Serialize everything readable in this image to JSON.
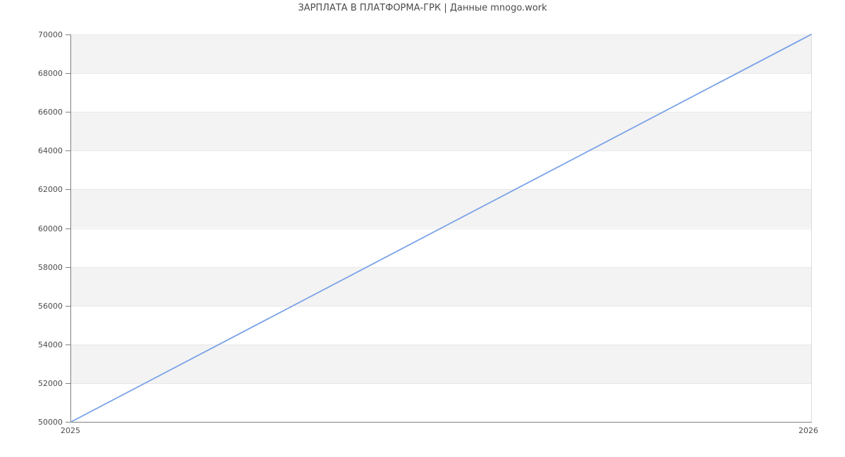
{
  "chart_data": {
    "type": "line",
    "title": "ЗАРПЛАТА В ПЛАТФОРМА-ГРК | Данные mnogo.work",
    "x": [
      2025,
      2026
    ],
    "xticklabels": [
      "2025",
      "2026"
    ],
    "series": [
      {
        "values": [
          50000,
          70000
        ],
        "color": "#7aa2e8",
        "width": 1.8
      }
    ],
    "xlabel": "",
    "ylabel": "",
    "xlim": [
      2025,
      2026
    ],
    "ylim": [
      50000,
      70000
    ],
    "ytick_step": 2000,
    "yticklabels": [
      "70000",
      "68000",
      "66000",
      "64000",
      "62000",
      "60000",
      "58000",
      "56000",
      "54000",
      "52000",
      "50000"
    ],
    "legend": "none",
    "grid": "horizontal alternating bands with gridline at each y tick",
    "band_colors": [
      "#f3f3f3",
      "#ffffff"
    ],
    "gridline_color": "#e7e7e7",
    "axis_color": "#7f7f7f",
    "right_border_color": "#dcdcdc",
    "tick_label_color": "#4d4d4d",
    "title_color": "#4a4a4a",
    "background_color": "#ffffff"
  }
}
